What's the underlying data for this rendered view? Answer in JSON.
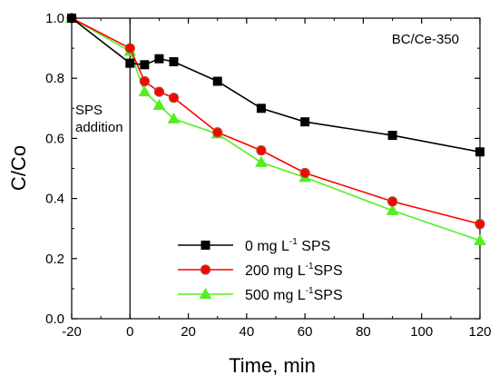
{
  "chart_data": {
    "type": "line",
    "xlabel": "Time, min",
    "ylabel": "C/Co",
    "xlim": [
      -20,
      120
    ],
    "ylim": [
      0.0,
      1.0
    ],
    "x_ticks": [
      -20,
      0,
      20,
      40,
      60,
      80,
      100,
      120
    ],
    "y_ticks": [
      0.0,
      0.2,
      0.4,
      0.6,
      0.8,
      1.0
    ],
    "x_tick_labels": [
      "-20",
      "0",
      "20",
      "40",
      "60",
      "80",
      "100",
      "120"
    ],
    "y_tick_labels": [
      "0.0",
      "0.2",
      "0.4",
      "0.6",
      "0.8",
      "1.0"
    ],
    "annotations": {
      "top_right": "BC/Ce-350",
      "vline_label_1": "SPS",
      "vline_label_2": "addition",
      "vline_x": 0
    },
    "legend_placement": "bottom-center",
    "series": [
      {
        "name_parts": [
          "0 mg L",
          "-1",
          " SPS"
        ],
        "color": "#000000",
        "line_color": "#000000",
        "marker": "square",
        "x": [
          -20,
          0,
          5,
          10,
          15,
          30,
          45,
          60,
          90,
          120
        ],
        "y": [
          1.0,
          0.85,
          0.845,
          0.865,
          0.855,
          0.79,
          0.7,
          0.655,
          0.61,
          0.555
        ]
      },
      {
        "name_parts": [
          "200 mg L",
          "-1",
          "SPS"
        ],
        "color": "#ff0000",
        "line_color": "#ff0000",
        "marker_edge": "#a0522d",
        "marker": "circle",
        "x": [
          -20,
          0,
          5,
          10,
          15,
          30,
          45,
          60,
          90,
          120
        ],
        "y": [
          1.0,
          0.9,
          0.79,
          0.755,
          0.735,
          0.62,
          0.56,
          0.485,
          0.39,
          0.315
        ]
      },
      {
        "name_parts": [
          "500 mg L",
          "-1",
          "SPS"
        ],
        "color": "#55ee22",
        "line_color": "#55ee22",
        "marker": "triangle",
        "x": [
          -20,
          0,
          5,
          10,
          15,
          30,
          45,
          60,
          90,
          120
        ],
        "y": [
          1.0,
          0.89,
          0.755,
          0.71,
          0.665,
          0.615,
          0.52,
          0.47,
          0.36,
          0.26
        ]
      }
    ]
  }
}
